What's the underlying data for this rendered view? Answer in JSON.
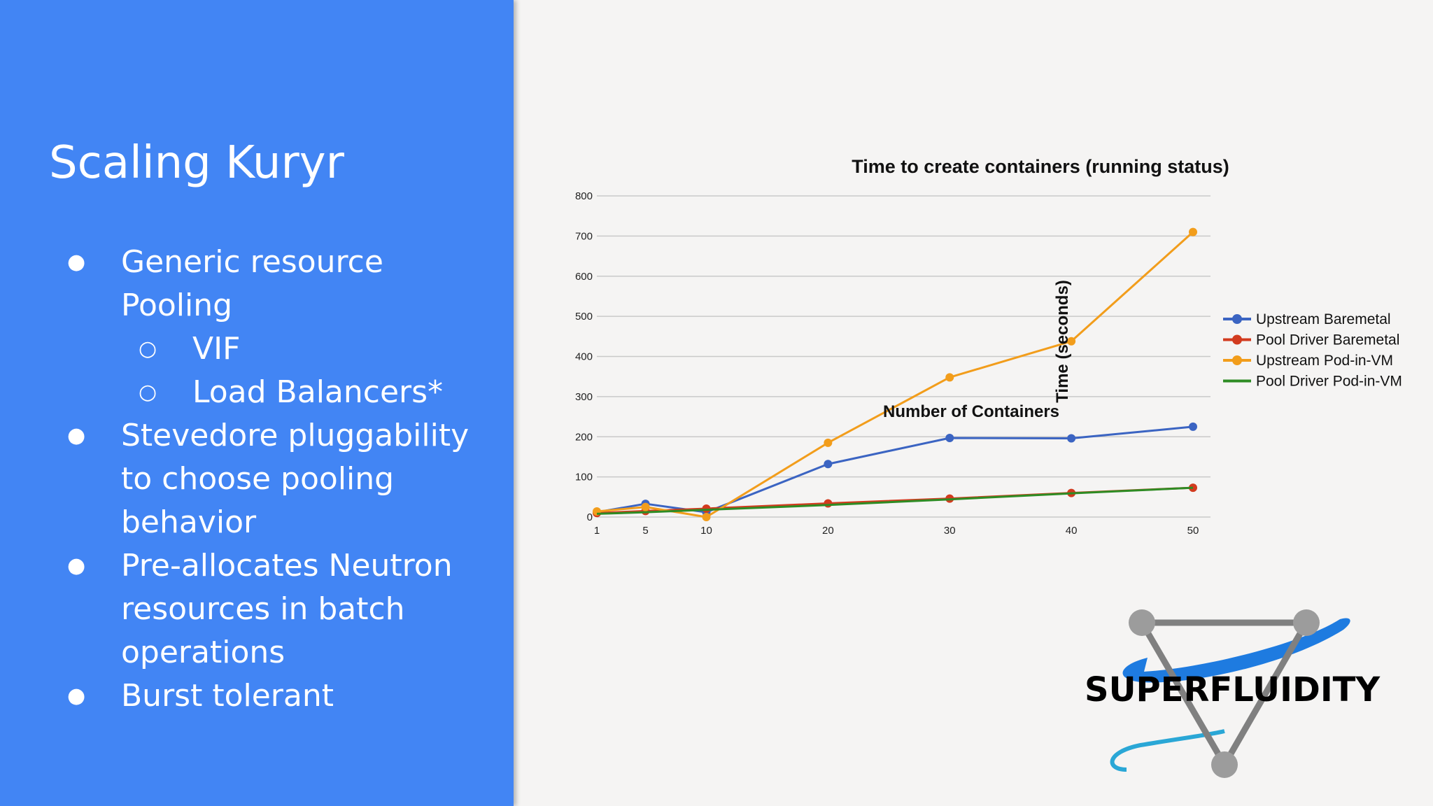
{
  "slide": {
    "title": "Scaling Kuryr",
    "bullets": [
      {
        "level": 1,
        "text": "Generic resource Pooling"
      },
      {
        "level": 2,
        "text": "VIF"
      },
      {
        "level": 2,
        "text": "Load Balancers*"
      },
      {
        "level": 1,
        "text": "Stevedore pluggability to choose pooling behavior"
      },
      {
        "level": 1,
        "text": "Pre-allocates Neutron resources in batch operations"
      },
      {
        "level": 1,
        "text": "Burst tolerant"
      }
    ],
    "bullet_marks": {
      "level1": "●",
      "level2": "○"
    }
  },
  "logo": {
    "text": "SUPERFLUIDITY"
  },
  "chart_data": {
    "type": "line",
    "title": "Time to create containers (running status)",
    "xlabel": "Number of Containers",
    "ylabel": "Time (seconds)",
    "x": [
      1,
      5,
      10,
      20,
      30,
      40,
      50
    ],
    "ylim": [
      0,
      800
    ],
    "yticks": [
      0,
      100,
      200,
      300,
      400,
      500,
      600,
      700,
      800
    ],
    "grid": true,
    "legend_position": "right",
    "series": [
      {
        "name": "Upstream Baremetal",
        "color": "#3b64c2",
        "markers": true,
        "values": [
          12,
          33,
          12,
          132,
          197,
          196,
          225
        ]
      },
      {
        "name": "Pool Driver Baremetal",
        "color": "#d23b1f",
        "markers": true,
        "values": [
          10,
          15,
          21,
          34,
          46,
          60,
          73
        ]
      },
      {
        "name": "Upstream Pod-in-VM",
        "color": "#f29d1b",
        "markers": true,
        "values": [
          14,
          25,
          0,
          185,
          348,
          438,
          710
        ]
      },
      {
        "name": "Pool Driver Pod-in-VM",
        "color": "#2e8c24",
        "markers": false,
        "values": [
          8,
          12,
          18,
          30,
          44,
          59,
          73
        ]
      }
    ]
  }
}
